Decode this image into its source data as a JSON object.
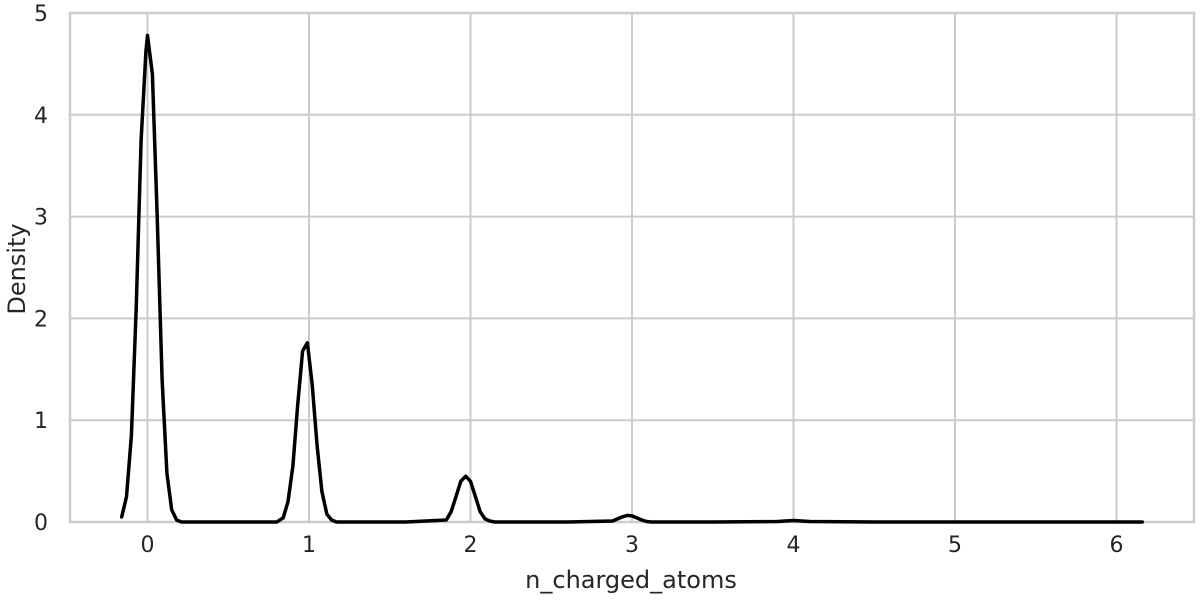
{
  "chart_data": {
    "type": "line",
    "title": "",
    "xlabel": "n_charged_atoms",
    "ylabel": "Density",
    "xlim": [
      -0.48,
      6.48
    ],
    "ylim": [
      0,
      5
    ],
    "xticks": [
      0,
      1,
      2,
      3,
      4,
      5,
      6
    ],
    "yticks": [
      0,
      1,
      2,
      3,
      4,
      5
    ],
    "xtick_labels": [
      "0",
      "1",
      "2",
      "3",
      "4",
      "5",
      "6"
    ],
    "ytick_labels": [
      "0",
      "1",
      "2",
      "3",
      "4",
      "5"
    ],
    "grid": true,
    "series": [
      {
        "color": "#000000",
        "x": [
          -0.16,
          -0.13,
          -0.1,
          -0.07,
          -0.04,
          -0.01,
          0.0,
          0.03,
          0.06,
          0.09,
          0.12,
          0.15,
          0.18,
          0.21,
          0.5,
          0.8,
          0.84,
          0.87,
          0.9,
          0.93,
          0.96,
          0.99,
          1.02,
          1.05,
          1.08,
          1.11,
          1.14,
          1.17,
          1.22,
          1.6,
          1.85,
          1.88,
          1.91,
          1.94,
          1.97,
          2.0,
          2.03,
          2.06,
          2.09,
          2.12,
          2.15,
          2.2,
          2.6,
          2.88,
          2.91,
          2.94,
          2.97,
          3.0,
          3.03,
          3.06,
          3.09,
          3.12,
          3.15,
          3.5,
          3.9,
          3.95,
          4.0,
          4.05,
          4.1,
          4.5,
          5.0,
          5.5,
          6.0,
          6.16
        ],
        "y": [
          0.05,
          0.25,
          0.85,
          2.1,
          3.75,
          4.62,
          4.78,
          4.4,
          3.0,
          1.4,
          0.48,
          0.12,
          0.02,
          0.0,
          0.0,
          0.0,
          0.04,
          0.2,
          0.55,
          1.15,
          1.68,
          1.76,
          1.35,
          0.75,
          0.3,
          0.08,
          0.02,
          0.0,
          0.0,
          0.0,
          0.02,
          0.1,
          0.25,
          0.4,
          0.45,
          0.4,
          0.25,
          0.1,
          0.03,
          0.01,
          0.0,
          0.0,
          0.0,
          0.01,
          0.03,
          0.05,
          0.065,
          0.06,
          0.04,
          0.02,
          0.005,
          0.0,
          0.0,
          0.0,
          0.005,
          0.01,
          0.015,
          0.01,
          0.005,
          0.0,
          0.0,
          0.0,
          0.0,
          0.0
        ]
      }
    ]
  }
}
